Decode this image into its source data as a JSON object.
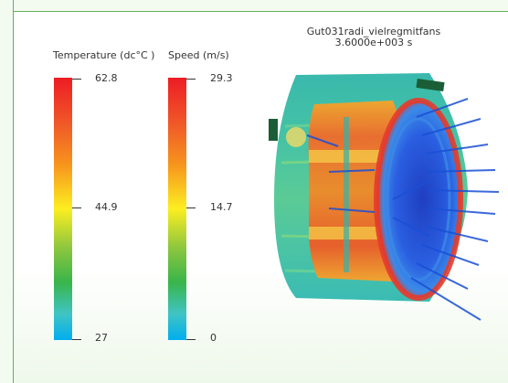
{
  "temperature_legend": {
    "title": "Temperature (dc°C )",
    "max": "62.8",
    "mid": "44.9",
    "min": "27"
  },
  "speed_legend": {
    "title": "Speed (m/s)",
    "max": "29.3",
    "mid": "14.7",
    "min": "0"
  },
  "render": {
    "title": "Gut031radi_vielregmitfans",
    "time": "3.6000e+003 s"
  },
  "colors": {
    "frame": "#64b05a",
    "hot": "#ed1c24",
    "cold": "#00aeef",
    "vector": "#1a4fd6"
  }
}
